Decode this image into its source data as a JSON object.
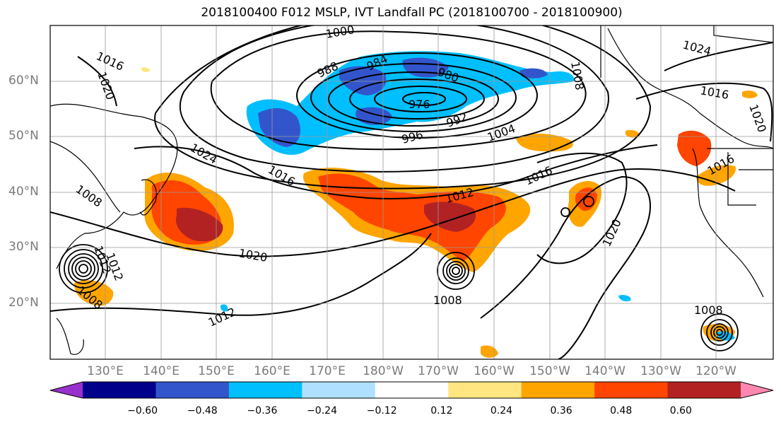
{
  "title": "2018100400 F012 MSLP, IVT Landfall PC (2018100700 - 2018100900)",
  "lat_labels": [
    "60°N",
    "50°N",
    "40°N",
    "30°N",
    "20°N"
  ],
  "lon_labels": [
    "130°E",
    "140°E",
    "150°E",
    "160°E",
    "170°E",
    "180°W",
    "170°W",
    "160°W",
    "150°W",
    "140°W",
    "130°W",
    "120°W"
  ],
  "contour_labels": [
    "1000",
    "988",
    "984",
    "980",
    "976",
    "992",
    "996",
    "1004",
    "1008",
    "1016",
    "1020",
    "1024",
    "1016",
    "1016",
    "1012",
    "1008",
    "1020",
    "1012",
    "1008",
    "1008",
    "1024",
    "1016",
    "1020",
    "1008",
    "1012",
    "1016",
    "1012",
    "1020",
    "1004",
    "996"
  ],
  "colorbar": {
    "ticks": [
      "−0.60",
      "−0.48",
      "−0.36",
      "−0.24",
      "−0.12",
      "0.12",
      "0.24",
      "0.36",
      "0.48",
      "0.60"
    ],
    "colors": [
      "#9932cc",
      "#00008b",
      "#3355cc",
      "#00bfff",
      "#b0e0ff",
      "#ffffff",
      "#ffe680",
      "#ffa500",
      "#ff4500",
      "#b22222",
      "#ff88b0"
    ]
  },
  "shading_colors": {
    "neg_light": "#00bfff",
    "neg_mid": "#3355cc",
    "pos_light": "#ffa500",
    "pos_mid": "#ff4500",
    "pos_dark": "#b22222",
    "pos_pale": "#ffe680"
  }
}
